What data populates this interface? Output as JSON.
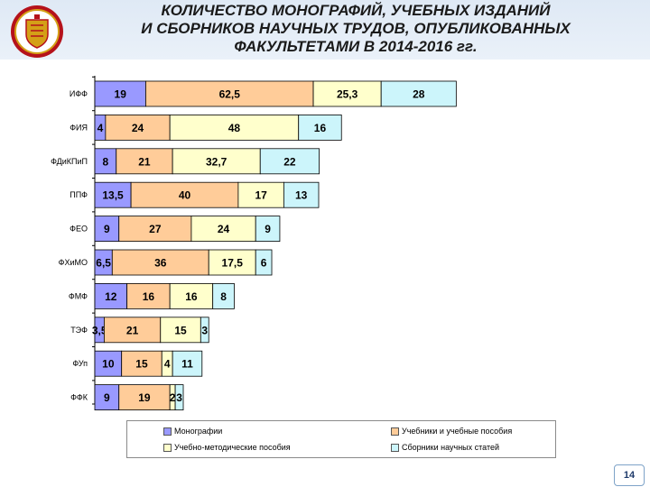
{
  "header": {
    "title_lines": [
      "КОЛИЧЕСТВО МОНОГРАФИЙ, УЧЕБНЫХ ИЗДАНИЙ",
      "И СБОРНИКОВ НАУЧНЫХ ТРУДОВ, ОПУБЛИКОВАННЫХ",
      "ФАКУЛЬТЕТАМИ В 2014-2016 гг."
    ]
  },
  "page_number": "14",
  "colors": {
    "monographs": "#9999ff",
    "textbooks": "#ffcc99",
    "methodical": "#ffffcc",
    "collections": "#ccf5fb",
    "header_bg": "#dfe9f5",
    "logo_red": "#b5121b",
    "logo_gold": "#d4a017"
  },
  "chart_data": {
    "type": "bar",
    "orientation": "horizontal",
    "stacked": true,
    "legend_position": "bottom",
    "categories": [
      "ИФФ",
      "ФИЯ",
      "ФДиКПиП",
      "ППФ",
      "ФЕО",
      "ФХиМО",
      "ФМФ",
      "ТЭФ",
      "ФУп",
      "ФФК"
    ],
    "series": [
      {
        "name": "Монографии",
        "values": [
          19,
          4,
          8,
          13.5,
          9,
          6.5,
          12,
          3.5,
          10,
          9
        ],
        "labels": [
          "19",
          "4",
          "8",
          "13,5",
          "9",
          "6,5",
          "12",
          "3,5",
          "10",
          "9"
        ]
      },
      {
        "name": "Учебники и учебные пособия",
        "values": [
          62.5,
          24,
          21,
          40,
          27,
          36,
          16,
          21,
          15,
          19
        ],
        "labels": [
          "62,5",
          "24",
          "21",
          "40",
          "27",
          "36",
          "16",
          "21",
          "15",
          "19"
        ]
      },
      {
        "name": "Учебно-методические пособия",
        "values": [
          25.3,
          48,
          32.7,
          17,
          24,
          17.5,
          16,
          15,
          4,
          2
        ],
        "labels": [
          "25,3",
          "48",
          "32,7",
          "17",
          "24",
          "17,5",
          "16",
          "15",
          "4",
          "2"
        ]
      },
      {
        "name": "Сборники научных статей",
        "values": [
          28,
          16,
          22,
          13,
          9,
          6,
          8,
          3,
          11,
          3
        ],
        "labels": [
          "28",
          "16",
          "22",
          "13",
          "9",
          "6",
          "8",
          "3",
          "11",
          "3"
        ]
      }
    ]
  }
}
